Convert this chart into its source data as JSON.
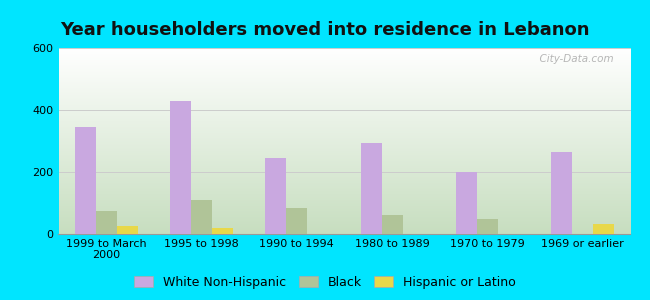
{
  "title": "Year householders moved into residence in Lebanon",
  "categories": [
    "1999 to March\n2000",
    "1995 to 1998",
    "1990 to 1994",
    "1980 to 1989",
    "1970 to 1979",
    "1969 or earlier"
  ],
  "white_non_hispanic": [
    345,
    430,
    245,
    295,
    200,
    265
  ],
  "black": [
    75,
    110,
    85,
    60,
    50,
    0
  ],
  "hispanic_or_latino": [
    25,
    18,
    0,
    0,
    0,
    32
  ],
  "white_color": "#c9a8e0",
  "black_color": "#b0c498",
  "hispanic_color": "#e8d84a",
  "background_outer": "#00e5ff",
  "ylim": [
    0,
    600
  ],
  "yticks": [
    0,
    200,
    400,
    600
  ],
  "bar_width": 0.22,
  "title_fontsize": 13,
  "tick_fontsize": 8,
  "legend_fontsize": 9,
  "watermark": "  City-Data.com"
}
